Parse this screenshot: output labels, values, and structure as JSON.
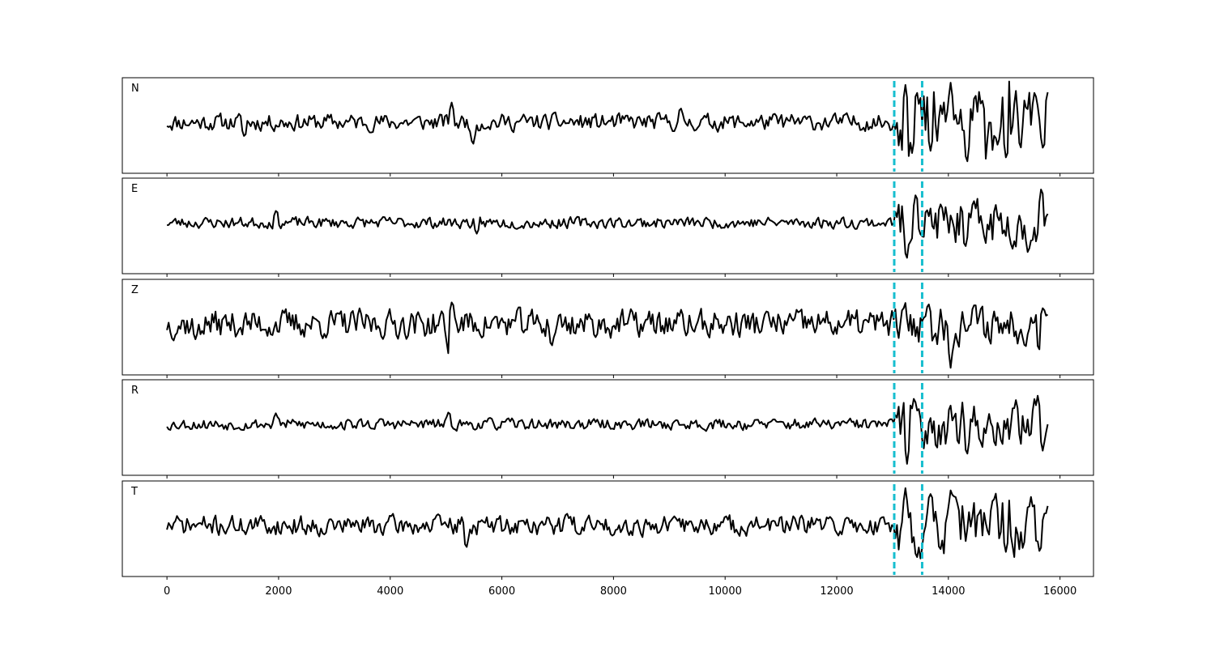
{
  "chart_data": {
    "type": "line",
    "title": "",
    "xlabel": "",
    "ylabel": "",
    "xlim": [
      -800,
      16600
    ],
    "x_ticks": [
      0,
      2000,
      4000,
      6000,
      8000,
      10000,
      12000,
      14000,
      16000
    ],
    "x_tick_labels": [
      "0",
      "2000",
      "4000",
      "6000",
      "8000",
      "10000",
      "12000",
      "14000",
      "16000"
    ],
    "grid": false,
    "legend": "none",
    "trace_color": "#000000",
    "marker_color": "#17becf",
    "markers_x": [
      13030,
      13530
    ],
    "marker_style": "dashed",
    "panels": [
      {
        "label": "N",
        "x_range": [
          0,
          15800
        ],
        "noise_amp": 0.12,
        "seed": 11,
        "events": [
          {
            "x": 1390,
            "y": -0.35
          },
          {
            "x": 5100,
            "y": 0.45
          },
          {
            "x": 5480,
            "y": -0.55
          },
          {
            "x": 9200,
            "y": 0.35
          },
          {
            "x": 13230,
            "y": 0.85
          },
          {
            "x": 13350,
            "y": -0.7
          },
          {
            "x": 13430,
            "y": 0.75
          },
          {
            "x": 13680,
            "y": -0.65
          },
          {
            "x": 14040,
            "y": 0.9
          },
          {
            "x": 14330,
            "y": -1.0
          },
          {
            "x": 14600,
            "y": 0.55
          },
          {
            "x": 15040,
            "y": -0.9
          },
          {
            "x": 15550,
            "y": 0.75
          },
          {
            "x": 15700,
            "y": -0.65
          }
        ],
        "coda_amp": 0.48
      },
      {
        "label": "E",
        "x_range": [
          0,
          15800
        ],
        "noise_amp": 0.08,
        "seed": 23,
        "events": [
          {
            "x": 1960,
            "y": 0.3
          },
          {
            "x": 5550,
            "y": -0.25
          },
          {
            "x": 13250,
            "y": -0.9
          },
          {
            "x": 13420,
            "y": 0.7
          },
          {
            "x": 14300,
            "y": -0.6
          },
          {
            "x": 15430,
            "y": -0.75
          },
          {
            "x": 15670,
            "y": 0.85
          },
          {
            "x": 15780,
            "y": 0.2
          }
        ],
        "coda_amp": 0.32
      },
      {
        "label": "Z",
        "x_range": [
          0,
          15800
        ],
        "noise_amp": 0.2,
        "seed": 37,
        "events": [
          {
            "x": 510,
            "y": -0.35
          },
          {
            "x": 5050,
            "y": -0.75
          },
          {
            "x": 5110,
            "y": 0.55
          },
          {
            "x": 6890,
            "y": -0.55
          },
          {
            "x": 13640,
            "y": 0.5
          },
          {
            "x": 14040,
            "y": -1.0
          },
          {
            "x": 15620,
            "y": -0.65
          },
          {
            "x": 15700,
            "y": 0.4
          }
        ],
        "coda_amp": 0.28
      },
      {
        "label": "R",
        "x_range": [
          0,
          15800
        ],
        "noise_amp": 0.08,
        "seed": 53,
        "events": [
          {
            "x": 1950,
            "y": 0.25
          },
          {
            "x": 5050,
            "y": 0.3
          },
          {
            "x": 13260,
            "y": -0.9
          },
          {
            "x": 13390,
            "y": 0.65
          },
          {
            "x": 14330,
            "y": -0.75
          },
          {
            "x": 15210,
            "y": 0.55
          },
          {
            "x": 15600,
            "y": 0.65
          },
          {
            "x": 15690,
            "y": -0.6
          }
        ],
        "coda_amp": 0.35
      },
      {
        "label": "T",
        "x_range": [
          0,
          15800
        ],
        "noise_amp": 0.14,
        "seed": 71,
        "events": [
          {
            "x": 5360,
            "y": -0.55
          },
          {
            "x": 7160,
            "y": 0.3
          },
          {
            "x": 13230,
            "y": 0.85
          },
          {
            "x": 13500,
            "y": -0.75
          },
          {
            "x": 14040,
            "y": -0.7
          },
          {
            "x": 14050,
            "y": 0.9
          },
          {
            "x": 15030,
            "y": -0.6
          },
          {
            "x": 15480,
            "y": 0.65
          },
          {
            "x": 15640,
            "y": -0.65
          },
          {
            "x": 15790,
            "y": 0.5
          }
        ],
        "coda_amp": 0.4
      }
    ]
  }
}
